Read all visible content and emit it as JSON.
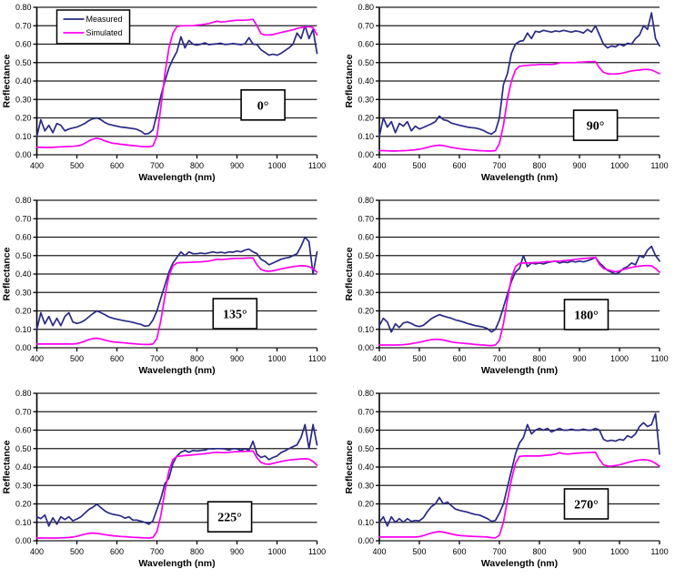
{
  "figure": {
    "description": "Measured vs simulated spectral reflectance at six rotation angles"
  },
  "colors": {
    "measured": "#2a2a86",
    "simulated": "#ff00f0",
    "grid": "#1f1f1f",
    "axis": "#000000",
    "box_border": "#000000",
    "background": "#ffffff"
  },
  "legend": {
    "items": [
      {
        "label": "Measured",
        "series": "measured"
      },
      {
        "label": "Simulated",
        "series": "simulated"
      }
    ]
  },
  "axes": {
    "x_label": "Wavelength (nm)",
    "y_label": "Reflectance",
    "x_ticks": [
      400,
      500,
      600,
      700,
      800,
      900,
      1000,
      1100
    ],
    "y_ticks": [
      "0.00",
      "0.10",
      "0.20",
      "0.30",
      "0.40",
      "0.50",
      "0.60",
      "0.70",
      "0.80"
    ],
    "x_range": [
      400,
      1100
    ],
    "y_range": [
      0,
      0.8
    ],
    "grid": "horizontal"
  },
  "chart_data": [
    {
      "type": "line",
      "angle_label": "0°",
      "show_legend": true,
      "label_box": {
        "x": 965,
        "y": 0.27
      },
      "x_start": 400,
      "x_step": 10,
      "series": [
        {
          "name": "Measured",
          "color_key": "measured",
          "values": [
            0.1,
            0.19,
            0.13,
            0.16,
            0.12,
            0.17,
            0.16,
            0.13,
            0.14,
            0.145,
            0.15,
            0.16,
            0.17,
            0.185,
            0.195,
            0.2,
            0.19,
            0.175,
            0.165,
            0.16,
            0.155,
            0.15,
            0.148,
            0.145,
            0.142,
            0.138,
            0.128,
            0.112,
            0.116,
            0.135,
            0.22,
            0.32,
            0.4,
            0.47,
            0.52,
            0.56,
            0.64,
            0.58,
            0.62,
            0.6,
            0.595,
            0.6,
            0.607,
            0.597,
            0.6,
            0.602,
            0.605,
            0.598,
            0.6,
            0.603,
            0.6,
            0.597,
            0.602,
            0.635,
            0.6,
            0.598,
            0.57,
            0.555,
            0.54,
            0.545,
            0.54,
            0.55,
            0.565,
            0.58,
            0.6,
            0.66,
            0.63,
            0.7,
            0.63,
            0.68,
            0.55
          ]
        },
        {
          "name": "Simulated",
          "color_key": "simulated",
          "values": [
            0.04,
            0.04,
            0.04,
            0.04,
            0.04,
            0.042,
            0.043,
            0.044,
            0.045,
            0.046,
            0.048,
            0.052,
            0.062,
            0.075,
            0.085,
            0.09,
            0.085,
            0.075,
            0.068,
            0.062,
            0.06,
            0.057,
            0.055,
            0.052,
            0.05,
            0.048,
            0.045,
            0.044,
            0.044,
            0.048,
            0.1,
            0.26,
            0.44,
            0.58,
            0.66,
            0.695,
            0.7,
            0.7,
            0.7,
            0.7,
            0.703,
            0.705,
            0.708,
            0.712,
            0.718,
            0.725,
            0.72,
            0.722,
            0.725,
            0.728,
            0.73,
            0.73,
            0.73,
            0.732,
            0.735,
            0.7,
            0.657,
            0.65,
            0.65,
            0.652,
            0.658,
            0.663,
            0.668,
            0.673,
            0.678,
            0.685,
            0.69,
            0.693,
            0.695,
            0.69,
            0.65
          ]
        }
      ]
    },
    {
      "type": "line",
      "angle_label": "90°",
      "show_legend": false,
      "label_box": {
        "x": 940,
        "y": 0.16
      },
      "x_start": 400,
      "x_step": 10,
      "series": [
        {
          "name": "Measured",
          "color_key": "measured",
          "values": [
            0.1,
            0.2,
            0.15,
            0.18,
            0.12,
            0.17,
            0.155,
            0.18,
            0.13,
            0.155,
            0.14,
            0.148,
            0.158,
            0.168,
            0.18,
            0.21,
            0.19,
            0.185,
            0.172,
            0.166,
            0.16,
            0.155,
            0.15,
            0.147,
            0.145,
            0.14,
            0.132,
            0.12,
            0.112,
            0.128,
            0.2,
            0.38,
            0.44,
            0.55,
            0.6,
            0.615,
            0.62,
            0.66,
            0.63,
            0.67,
            0.665,
            0.675,
            0.67,
            0.665,
            0.672,
            0.668,
            0.675,
            0.67,
            0.665,
            0.672,
            0.668,
            0.66,
            0.68,
            0.665,
            0.7,
            0.65,
            0.6,
            0.58,
            0.59,
            0.585,
            0.6,
            0.59,
            0.605,
            0.6,
            0.63,
            0.65,
            0.7,
            0.68,
            0.77,
            0.63,
            0.59
          ]
        },
        {
          "name": "Simulated",
          "color_key": "simulated",
          "values": [
            0.022,
            0.022,
            0.021,
            0.02,
            0.02,
            0.021,
            0.022,
            0.023,
            0.025,
            0.027,
            0.03,
            0.034,
            0.04,
            0.046,
            0.05,
            0.052,
            0.05,
            0.045,
            0.04,
            0.036,
            0.033,
            0.03,
            0.028,
            0.026,
            0.024,
            0.022,
            0.021,
            0.02,
            0.02,
            0.022,
            0.06,
            0.16,
            0.3,
            0.4,
            0.46,
            0.48,
            0.483,
            0.485,
            0.487,
            0.488,
            0.49,
            0.49,
            0.49,
            0.49,
            0.492,
            0.5,
            0.5,
            0.5,
            0.5,
            0.5,
            0.502,
            0.503,
            0.504,
            0.505,
            0.505,
            0.47,
            0.447,
            0.44,
            0.438,
            0.438,
            0.44,
            0.444,
            0.45,
            0.455,
            0.458,
            0.46,
            0.462,
            0.463,
            0.46,
            0.45,
            0.44
          ]
        }
      ]
    },
    {
      "type": "line",
      "angle_label": "135°",
      "show_legend": false,
      "label_box": {
        "x": 895,
        "y": 0.185
      },
      "x_start": 400,
      "x_step": 10,
      "series": [
        {
          "name": "Measured",
          "color_key": "measured",
          "values": [
            0.1,
            0.19,
            0.13,
            0.17,
            0.12,
            0.16,
            0.12,
            0.17,
            0.19,
            0.14,
            0.132,
            0.138,
            0.15,
            0.168,
            0.185,
            0.2,
            0.19,
            0.18,
            0.167,
            0.16,
            0.155,
            0.15,
            0.146,
            0.142,
            0.138,
            0.132,
            0.127,
            0.117,
            0.12,
            0.15,
            0.2,
            0.27,
            0.34,
            0.41,
            0.46,
            0.49,
            0.52,
            0.5,
            0.52,
            0.51,
            0.51,
            0.514,
            0.51,
            0.515,
            0.52,
            0.515,
            0.518,
            0.514,
            0.52,
            0.518,
            0.525,
            0.52,
            0.53,
            0.535,
            0.52,
            0.51,
            0.48,
            0.468,
            0.45,
            0.46,
            0.47,
            0.48,
            0.486,
            0.49,
            0.5,
            0.51,
            0.55,
            0.6,
            0.575,
            0.4,
            0.52
          ]
        },
        {
          "name": "Simulated",
          "color_key": "simulated",
          "values": [
            0.02,
            0.02,
            0.02,
            0.02,
            0.02,
            0.02,
            0.02,
            0.02,
            0.02,
            0.02,
            0.022,
            0.028,
            0.036,
            0.044,
            0.05,
            0.052,
            0.048,
            0.042,
            0.036,
            0.032,
            0.03,
            0.028,
            0.026,
            0.024,
            0.022,
            0.02,
            0.019,
            0.018,
            0.018,
            0.02,
            0.05,
            0.15,
            0.28,
            0.39,
            0.445,
            0.46,
            0.462,
            0.462,
            0.463,
            0.464,
            0.465,
            0.466,
            0.468,
            0.47,
            0.475,
            0.48,
            0.478,
            0.48,
            0.482,
            0.484,
            0.485,
            0.485,
            0.486,
            0.487,
            0.487,
            0.45,
            0.425,
            0.417,
            0.415,
            0.418,
            0.422,
            0.428,
            0.432,
            0.436,
            0.44,
            0.443,
            0.445,
            0.444,
            0.44,
            0.428,
            0.41
          ]
        }
      ]
    },
    {
      "type": "line",
      "angle_label": "180°",
      "show_legend": false,
      "label_box": {
        "x": 917,
        "y": 0.18
      },
      "x_start": 400,
      "x_step": 10,
      "series": [
        {
          "name": "Measured",
          "color_key": "measured",
          "values": [
            0.12,
            0.16,
            0.14,
            0.085,
            0.13,
            0.11,
            0.135,
            0.14,
            0.132,
            0.12,
            0.115,
            0.122,
            0.14,
            0.158,
            0.17,
            0.18,
            0.172,
            0.166,
            0.16,
            0.151,
            0.146,
            0.14,
            0.132,
            0.126,
            0.12,
            0.116,
            0.112,
            0.104,
            0.086,
            0.1,
            0.15,
            0.22,
            0.29,
            0.36,
            0.41,
            0.43,
            0.5,
            0.44,
            0.46,
            0.455,
            0.46,
            0.455,
            0.462,
            0.466,
            0.47,
            0.46,
            0.465,
            0.462,
            0.47,
            0.465,
            0.47,
            0.466,
            0.472,
            0.48,
            0.49,
            0.46,
            0.44,
            0.42,
            0.41,
            0.4,
            0.41,
            0.43,
            0.44,
            0.46,
            0.45,
            0.5,
            0.49,
            0.53,
            0.55,
            0.5,
            0.47
          ]
        },
        {
          "name": "Simulated",
          "color_key": "simulated",
          "values": [
            0.015,
            0.015,
            0.015,
            0.015,
            0.015,
            0.016,
            0.017,
            0.019,
            0.022,
            0.026,
            0.03,
            0.035,
            0.04,
            0.044,
            0.046,
            0.045,
            0.042,
            0.037,
            0.032,
            0.028,
            0.026,
            0.024,
            0.022,
            0.02,
            0.018,
            0.016,
            0.015,
            0.013,
            0.012,
            0.015,
            0.04,
            0.13,
            0.26,
            0.38,
            0.44,
            0.458,
            0.46,
            0.46,
            0.461,
            0.462,
            0.463,
            0.465,
            0.467,
            0.468,
            0.47,
            0.47,
            0.472,
            0.474,
            0.476,
            0.48,
            0.482,
            0.484,
            0.486,
            0.488,
            0.49,
            0.452,
            0.43,
            0.423,
            0.418,
            0.412,
            0.418,
            0.425,
            0.43,
            0.436,
            0.44,
            0.443,
            0.445,
            0.446,
            0.444,
            0.43,
            0.41
          ]
        }
      ]
    },
    {
      "type": "line",
      "angle_label": "225°",
      "show_legend": false,
      "label_box": {
        "x": 882,
        "y": 0.13
      },
      "x_start": 400,
      "x_step": 10,
      "series": [
        {
          "name": "Measured",
          "color_key": "measured",
          "values": [
            0.13,
            0.12,
            0.14,
            0.08,
            0.125,
            0.09,
            0.13,
            0.115,
            0.13,
            0.108,
            0.118,
            0.13,
            0.15,
            0.17,
            0.182,
            0.198,
            0.18,
            0.162,
            0.15,
            0.143,
            0.14,
            0.135,
            0.122,
            0.13,
            0.112,
            0.112,
            0.106,
            0.1,
            0.09,
            0.108,
            0.17,
            0.23,
            0.31,
            0.34,
            0.42,
            0.46,
            0.48,
            0.49,
            0.48,
            0.49,
            0.487,
            0.49,
            0.492,
            0.5,
            0.498,
            0.5,
            0.5,
            0.498,
            0.492,
            0.5,
            0.498,
            0.49,
            0.5,
            0.49,
            0.54,
            0.47,
            0.452,
            0.46,
            0.44,
            0.452,
            0.46,
            0.478,
            0.488,
            0.5,
            0.51,
            0.52,
            0.56,
            0.63,
            0.5,
            0.63,
            0.52
          ]
        },
        {
          "name": "Simulated",
          "color_key": "simulated",
          "values": [
            0.015,
            0.015,
            0.015,
            0.015,
            0.015,
            0.015,
            0.016,
            0.017,
            0.018,
            0.02,
            0.024,
            0.03,
            0.036,
            0.04,
            0.042,
            0.04,
            0.037,
            0.033,
            0.03,
            0.027,
            0.025,
            0.023,
            0.022,
            0.02,
            0.019,
            0.018,
            0.017,
            0.016,
            0.015,
            0.018,
            0.05,
            0.14,
            0.27,
            0.38,
            0.44,
            0.458,
            0.46,
            0.462,
            0.464,
            0.466,
            0.468,
            0.47,
            0.472,
            0.475,
            0.478,
            0.48,
            0.478,
            0.478,
            0.48,
            0.482,
            0.483,
            0.484,
            0.485,
            0.486,
            0.487,
            0.45,
            0.425,
            0.417,
            0.415,
            0.42,
            0.425,
            0.43,
            0.434,
            0.438,
            0.44,
            0.442,
            0.444,
            0.445,
            0.443,
            0.43,
            0.41
          ]
        }
      ]
    },
    {
      "type": "line",
      "angle_label": "270°",
      "show_legend": false,
      "label_box": {
        "x": 917,
        "y": 0.2
      },
      "x_start": 400,
      "x_step": 10,
      "series": [
        {
          "name": "Measured",
          "color_key": "measured",
          "values": [
            0.1,
            0.13,
            0.08,
            0.13,
            0.1,
            0.12,
            0.1,
            0.12,
            0.105,
            0.11,
            0.108,
            0.125,
            0.158,
            0.185,
            0.2,
            0.235,
            0.2,
            0.21,
            0.19,
            0.172,
            0.165,
            0.16,
            0.155,
            0.148,
            0.142,
            0.14,
            0.13,
            0.12,
            0.105,
            0.11,
            0.15,
            0.2,
            0.29,
            0.38,
            0.47,
            0.53,
            0.56,
            0.63,
            0.58,
            0.6,
            0.61,
            0.6,
            0.61,
            0.59,
            0.6,
            0.61,
            0.6,
            0.6,
            0.605,
            0.6,
            0.6,
            0.605,
            0.6,
            0.6,
            0.61,
            0.6,
            0.55,
            0.54,
            0.545,
            0.54,
            0.55,
            0.545,
            0.57,
            0.56,
            0.58,
            0.62,
            0.64,
            0.62,
            0.63,
            0.69,
            0.47
          ]
        },
        {
          "name": "Simulated",
          "color_key": "simulated",
          "values": [
            0.02,
            0.02,
            0.02,
            0.02,
            0.02,
            0.02,
            0.02,
            0.02,
            0.02,
            0.02,
            0.022,
            0.028,
            0.035,
            0.042,
            0.047,
            0.05,
            0.047,
            0.042,
            0.037,
            0.032,
            0.029,
            0.027,
            0.025,
            0.024,
            0.023,
            0.022,
            0.021,
            0.02,
            0.017,
            0.016,
            0.03,
            0.1,
            0.22,
            0.33,
            0.42,
            0.458,
            0.46,
            0.46,
            0.46,
            0.46,
            0.46,
            0.462,
            0.464,
            0.466,
            0.47,
            0.478,
            0.472,
            0.47,
            0.472,
            0.474,
            0.476,
            0.477,
            0.478,
            0.479,
            0.48,
            0.44,
            0.412,
            0.406,
            0.405,
            0.408,
            0.412,
            0.418,
            0.424,
            0.43,
            0.435,
            0.438,
            0.44,
            0.438,
            0.432,
            0.42,
            0.405
          ]
        }
      ]
    }
  ]
}
